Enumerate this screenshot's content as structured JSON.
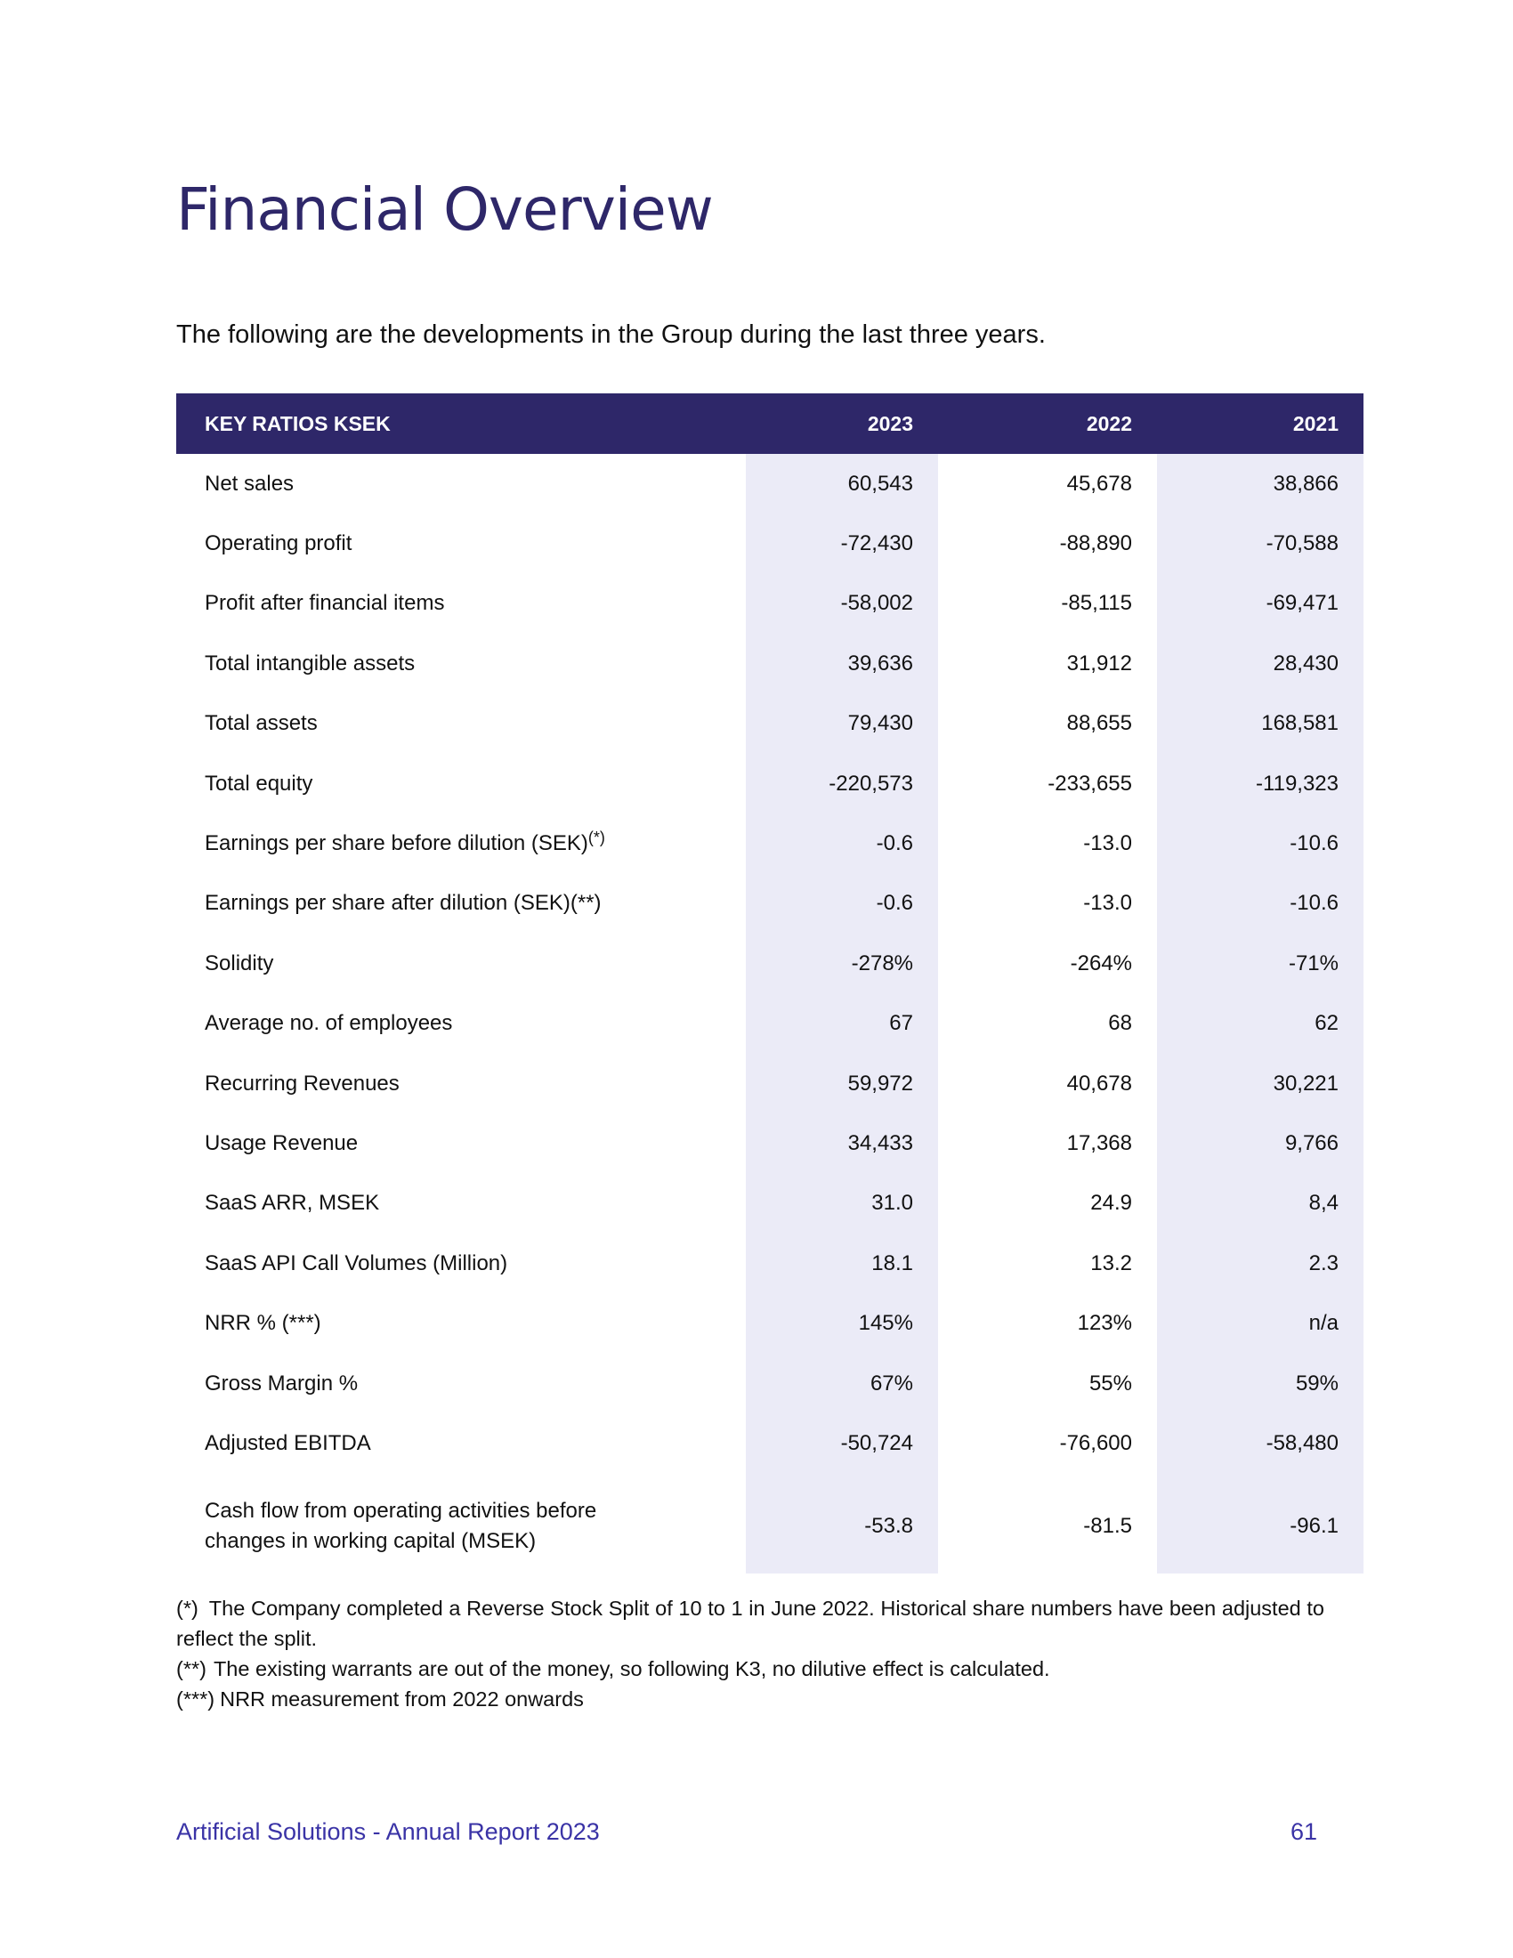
{
  "title": "Financial Overview",
  "intro": "The following are the developments in the Group during the last three years.",
  "table": {
    "headers": [
      "KEY RATIOS KSEK",
      "2023",
      "2022",
      "2021"
    ],
    "rows": [
      {
        "label": "Net sales",
        "sup": "",
        "values": [
          "60,543",
          "45,678",
          "38,866"
        ]
      },
      {
        "label": "Operating profit",
        "sup": "",
        "values": [
          "-72,430",
          "-88,890",
          "-70,588"
        ]
      },
      {
        "label": "Profit after financial items",
        "sup": "",
        "values": [
          "-58,002",
          "-85,115",
          "-69,471"
        ]
      },
      {
        "label": "Total intangible assets",
        "sup": "",
        "values": [
          "39,636",
          "31,912",
          "28,430"
        ]
      },
      {
        "label": "Total assets",
        "sup": "",
        "values": [
          "79,430",
          "88,655",
          "168,581"
        ]
      },
      {
        "label": "Total equity",
        "sup": "",
        "values": [
          "-220,573",
          "-233,655",
          "-119,323"
        ]
      },
      {
        "label": "Earnings per share before dilution (SEK)",
        "sup": "(*)",
        "values": [
          "-0.6",
          "-13.0",
          "-10.6"
        ]
      },
      {
        "label": "Earnings per share after dilution (SEK)(**)",
        "sup": "",
        "values": [
          "-0.6",
          "-13.0",
          "-10.6"
        ]
      },
      {
        "label": "Solidity",
        "sup": "",
        "values": [
          "-278%",
          "-264%",
          "-71%"
        ]
      },
      {
        "label": "Average no. of employees",
        "sup": "",
        "values": [
          "67",
          "68",
          "62"
        ]
      },
      {
        "label": "Recurring Revenues",
        "sup": "",
        "values": [
          "59,972",
          "40,678",
          "30,221"
        ]
      },
      {
        "label": "Usage Revenue",
        "sup": "",
        "values": [
          "34,433",
          "17,368",
          "9,766"
        ]
      },
      {
        "label": "SaaS ARR, MSEK",
        "sup": "",
        "values": [
          "31.0",
          "24.9",
          "8,4"
        ]
      },
      {
        "label": "SaaS API Call Volumes (Million)",
        "sup": "",
        "values": [
          "18.1",
          "13.2",
          "2.3"
        ]
      },
      {
        "label": "NRR % (***)",
        "sup": "",
        "values": [
          "145%",
          "123%",
          "n/a"
        ]
      },
      {
        "label": "Gross Margin %",
        "sup": "",
        "values": [
          "67%",
          "55%",
          "59%"
        ]
      },
      {
        "label": "Adjusted EBITDA",
        "sup": "",
        "values": [
          "-50,724",
          "-76,600",
          "-58,480"
        ]
      },
      {
        "label_lines": [
          "Cash flow from operating activities before",
          "changes in working capital (MSEK)"
        ],
        "sup": "",
        "values": [
          "-53.8",
          "-81.5",
          "-96.1"
        ]
      }
    ]
  },
  "footnotes": [
    {
      "mark": "(*)",
      "text": "The Company completed a Reverse Stock Split of 10 to 1 in June 2022. Historical share numbers have been adjusted to reflect the split."
    },
    {
      "mark": "(**)",
      "text": "The existing warrants are out of the money, so following K3, no dilutive effect is calculated."
    },
    {
      "mark": "(***)",
      "text": "NRR measurement from 2022 onwards"
    }
  ],
  "footer": {
    "left": "Artificial Solutions - Annual Report 2023",
    "page_number": "61"
  }
}
